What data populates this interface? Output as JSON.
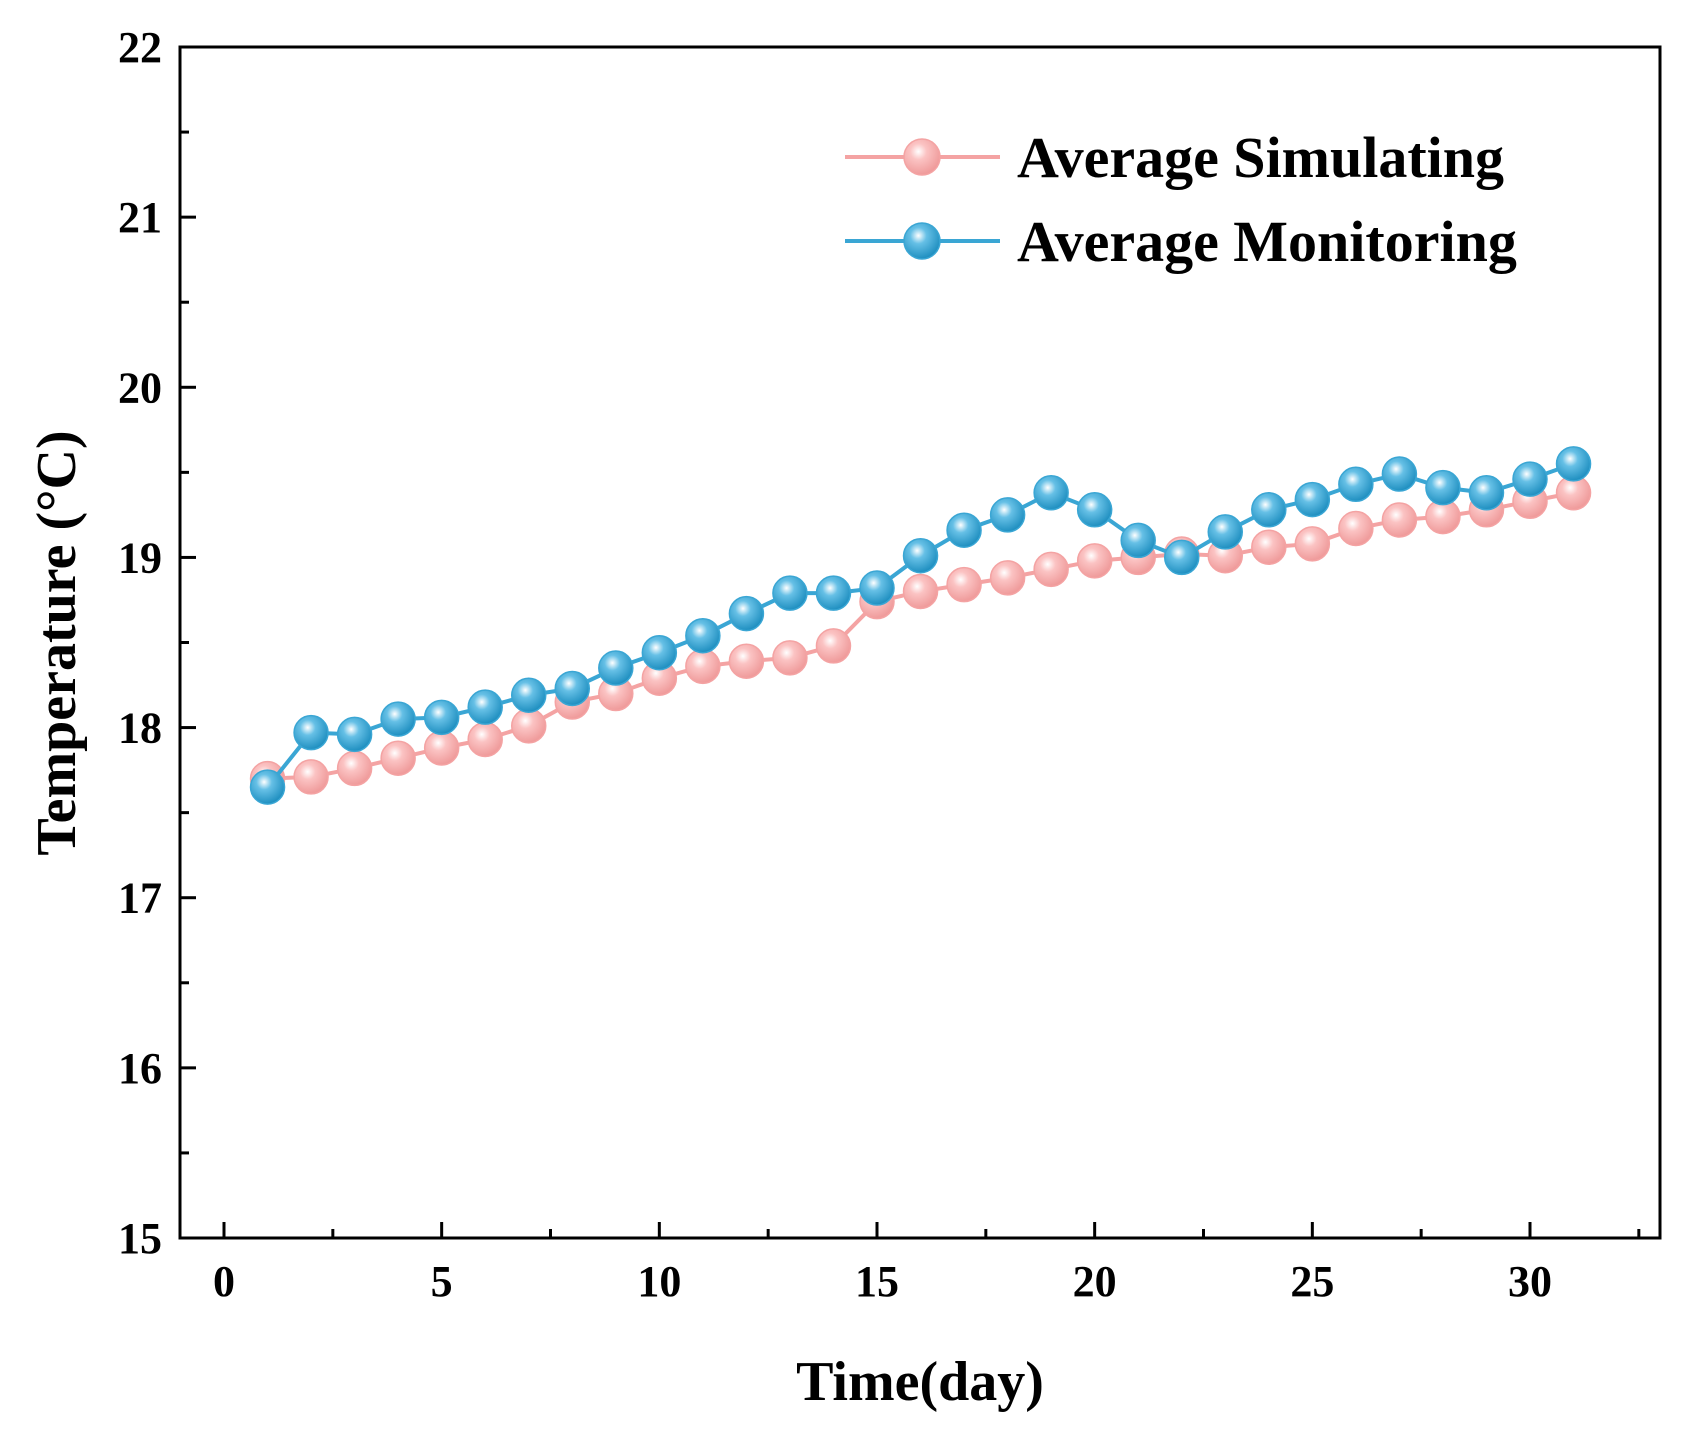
{
  "chart_data": {
    "type": "line",
    "title": "",
    "xlabel": "Time(day)",
    "ylabel": "Temperature (°C)",
    "xlim": [
      -1,
      33
    ],
    "ylim": [
      15,
      22
    ],
    "xticks": [
      0,
      5,
      10,
      15,
      20,
      25,
      30
    ],
    "yticks": [
      15,
      16,
      17,
      18,
      19,
      20,
      21,
      22
    ],
    "legend_position": "top-right",
    "grid": false,
    "x": [
      1,
      2,
      3,
      4,
      5,
      6,
      7,
      8,
      9,
      10,
      11,
      12,
      13,
      14,
      15,
      16,
      17,
      18,
      19,
      20,
      21,
      22,
      23,
      24,
      25,
      26,
      27,
      28,
      29,
      30,
      31
    ],
    "series": [
      {
        "name": "Average Simulating",
        "color": "#f4a3a3",
        "values": [
          17.7,
          17.71,
          17.76,
          17.82,
          17.88,
          17.93,
          18.01,
          18.15,
          18.2,
          18.29,
          18.36,
          18.39,
          18.41,
          18.48,
          18.74,
          18.8,
          18.84,
          18.88,
          18.93,
          18.98,
          19.0,
          19.02,
          19.01,
          19.06,
          19.08,
          19.17,
          19.22,
          19.24,
          19.28,
          19.33,
          19.38
        ]
      },
      {
        "name": "Average Monitoring",
        "color": "#3aa6d4",
        "values": [
          17.65,
          17.97,
          17.96,
          18.05,
          18.06,
          18.12,
          18.19,
          18.23,
          18.35,
          18.44,
          18.54,
          18.67,
          18.79,
          18.79,
          18.82,
          19.01,
          19.16,
          19.25,
          19.38,
          19.28,
          19.1,
          19.0,
          19.15,
          19.28,
          19.34,
          19.43,
          19.49,
          19.41,
          19.38,
          19.46,
          19.55
        ]
      }
    ]
  }
}
